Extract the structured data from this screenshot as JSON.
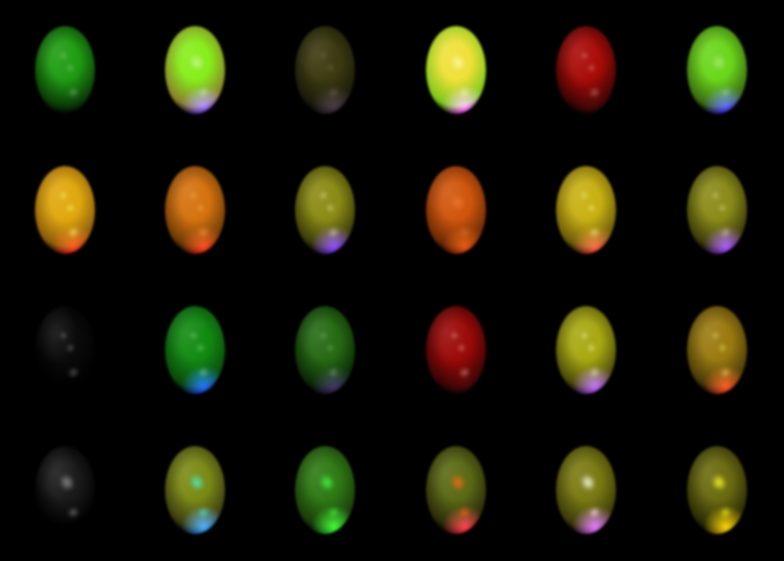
{
  "scene": {
    "background": "#000000",
    "rows": 4,
    "cols": 6
  },
  "spheres": [
    {
      "base": "#1f9c12",
      "rim": "#0a3a06",
      "glow": "#000000",
      "hl": "#c8f0c0",
      "hl_strength": 0.5,
      "spec": "small"
    },
    {
      "base": "#86ee1a",
      "rim": "#8a7e2a",
      "glow": "#6a3aff",
      "hl": "#f0ffe0",
      "hl_strength": 0.6,
      "spec": "main"
    },
    {
      "base": "#3b3a10",
      "rim": "#1a1a0a",
      "glow": "#3a2a40",
      "hl": "#b0a080",
      "hl_strength": 0.4,
      "spec": "small"
    },
    {
      "base": "#f0e03a",
      "rim": "#7ac81a",
      "glow": "#ff2aff",
      "hl": "#ffffc0",
      "hl_strength": 0.8,
      "spec": "main"
    },
    {
      "base": "#a80c08",
      "rim": "#3a0404",
      "glow": "#200404",
      "hl": "#ffb0a0",
      "hl_strength": 0.6,
      "spec": "small"
    },
    {
      "base": "#6ad61a",
      "rim": "#3a6a10",
      "glow": "#3a1aff",
      "hl": "#d8ffc0",
      "hl_strength": 0.5,
      "spec": "main"
    },
    {
      "base": "#e0a80e",
      "rim": "#8a5a0a",
      "glow": "#ff1a1a",
      "hl": "#ffff80",
      "hl_strength": 0.9,
      "spec": "small"
    },
    {
      "base": "#d4720e",
      "rim": "#6a3a06",
      "glow": "#ff2a1a",
      "hl": "#ffc060",
      "hl_strength": 0.7,
      "spec": "small"
    },
    {
      "base": "#8a8a14",
      "rim": "#3a3a08",
      "glow": "#7a2aff",
      "hl": "#ffffd0",
      "hl_strength": 0.7,
      "spec": "small"
    },
    {
      "base": "#d0560c",
      "rim": "#6a2a04",
      "glow": "#e04010",
      "hl": "#ff9050",
      "hl_strength": 0.5,
      "spec": "main"
    },
    {
      "base": "#c8b012",
      "rim": "#6a5a0a",
      "glow": "#ff3a40",
      "hl": "#ffff90",
      "hl_strength": 0.8,
      "spec": "small"
    },
    {
      "base": "#8a8a18",
      "rim": "#3a3a08",
      "glow": "#9a3aff",
      "hl": "#ffffc0",
      "hl_strength": 0.6,
      "spec": "small"
    },
    {
      "base": "#0a0a0a",
      "rim": "#000000",
      "glow": "#000000",
      "hl": "#d0d0d0",
      "hl_strength": 0.5,
      "spec": "small"
    },
    {
      "base": "#128a12",
      "rim": "#0a4a0a",
      "glow": "#1a4aff",
      "hl": "#b0ffb0",
      "hl_strength": 0.6,
      "spec": "small"
    },
    {
      "base": "#266a14",
      "rim": "#0a2a06",
      "glow": "#3a1a60",
      "hl": "#b0e0a0",
      "hl_strength": 0.5,
      "spec": "small"
    },
    {
      "base": "#9a0a08",
      "rim": "#3a0404",
      "glow": "#200404",
      "hl": "#ffc0b0",
      "hl_strength": 0.7,
      "spec": "small"
    },
    {
      "base": "#a8a812",
      "rim": "#4a4a08",
      "glow": "#b04aff",
      "hl": "#ffffc0",
      "hl_strength": 0.8,
      "spec": "small"
    },
    {
      "base": "#9a7a10",
      "rim": "#4a3a08",
      "glow": "#ff3a20",
      "hl": "#ffff80",
      "hl_strength": 0.7,
      "spec": "small"
    },
    {
      "base": "#1a1a1a",
      "rim": "#000000",
      "glow": "#000000",
      "hl": "#d8d8d8",
      "hl_strength": 0.6,
      "spec": "main"
    },
    {
      "base": "#7a8a14",
      "rim": "#3a3a10",
      "glow": "#2aa0ff",
      "hl": "#40ffe0",
      "hl_strength": 0.9,
      "spec": "main"
    },
    {
      "base": "#2e7a14",
      "rim": "#1a3a0a",
      "glow": "#30ff30",
      "hl": "#40ff40",
      "hl_strength": 1.0,
      "spec": "main"
    },
    {
      "base": "#5a6a14",
      "rim": "#2a2a08",
      "glow": "#ff2a4a",
      "hl": "#ff6a10",
      "hl_strength": 1.0,
      "spec": "main"
    },
    {
      "base": "#7a7a12",
      "rim": "#3a3a08",
      "glow": "#e060ff",
      "hl": "#fffff0",
      "hl_strength": 1.0,
      "spec": "main"
    },
    {
      "base": "#6a6a10",
      "rim": "#2a2a06",
      "glow": "#ffd000",
      "hl": "#ffff20",
      "hl_strength": 1.0,
      "spec": "main"
    }
  ]
}
